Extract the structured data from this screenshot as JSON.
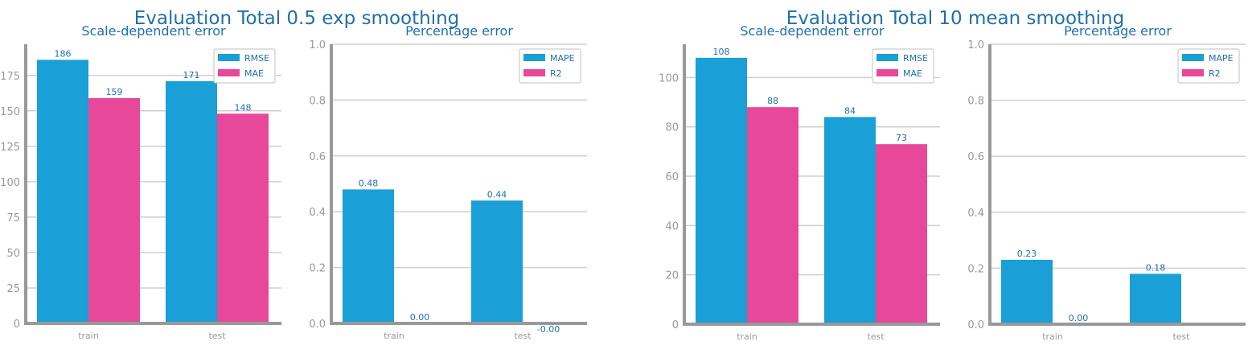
{
  "figure": {
    "titles": [
      "Evaluation Total 0.5 exp smoothing",
      "Evaluation Total 10 mean smoothing"
    ]
  },
  "colors": {
    "series_a": "#1a9fd6",
    "series_b": "#e8489a",
    "text": "#1f6fad",
    "axis": "#999999",
    "grid": "#cfcfcf"
  },
  "chart_data": [
    {
      "type": "bar",
      "title": "Scale-dependent error",
      "categories": [
        "train",
        "test"
      ],
      "series": [
        {
          "name": "RMSE",
          "values": [
            186,
            171
          ],
          "labels": [
            "186",
            "171"
          ]
        },
        {
          "name": "MAE",
          "values": [
            159,
            148
          ],
          "labels": [
            "159",
            "148"
          ]
        }
      ],
      "ylim": [
        0,
        197
      ],
      "yticks": [
        0,
        25,
        50,
        75,
        100,
        125,
        150,
        175
      ],
      "legend": "top-right",
      "grid": true,
      "xlabel": "",
      "ylabel": ""
    },
    {
      "type": "bar",
      "title": "Percentage error",
      "categories": [
        "train",
        "test"
      ],
      "series": [
        {
          "name": "MAPE",
          "values": [
            0.48,
            0.44
          ],
          "labels": [
            "0.48",
            "0.44"
          ]
        },
        {
          "name": "R2",
          "values": [
            0.0,
            -0.0
          ],
          "labels": [
            "0.00",
            "-0.00"
          ]
        }
      ],
      "ylim": [
        0,
        1.0
      ],
      "yticks": [
        0.0,
        0.2,
        0.4,
        0.6,
        0.8,
        1.0
      ],
      "yticklabels": [
        "0.0",
        "0.2",
        "0.4",
        "0.6",
        "0.8",
        "1.0"
      ],
      "legend": "top-right",
      "grid": true,
      "xlabel": "",
      "ylabel": ""
    },
    {
      "type": "bar",
      "title": "Scale-dependent error",
      "categories": [
        "train",
        "test"
      ],
      "series": [
        {
          "name": "RMSE",
          "values": [
            108,
            84
          ],
          "labels": [
            "108",
            "84"
          ]
        },
        {
          "name": "MAE",
          "values": [
            88,
            73
          ],
          "labels": [
            "88",
            "73"
          ]
        }
      ],
      "ylim": [
        0,
        113.5
      ],
      "yticks": [
        0,
        20,
        40,
        60,
        80,
        100
      ],
      "legend": "top-right",
      "grid": true,
      "xlabel": "",
      "ylabel": ""
    },
    {
      "type": "bar",
      "title": "Percentage error",
      "categories": [
        "train",
        "test"
      ],
      "series": [
        {
          "name": "MAPE",
          "values": [
            0.23,
            0.18
          ],
          "labels": [
            "0.23",
            "0.18"
          ]
        },
        {
          "name": "R2",
          "values": [
            0.0,
            0.0
          ],
          "labels": [
            "0.00",
            ""
          ]
        }
      ],
      "ylim": [
        0,
        1.0
      ],
      "yticks": [
        0.0,
        0.2,
        0.4,
        0.6,
        0.8,
        1.0
      ],
      "yticklabels": [
        "0.0",
        "0.2",
        "0.4",
        "0.6",
        "0.8",
        "1.0"
      ],
      "legend": "top-right",
      "grid": true,
      "xlabel": "",
      "ylabel": ""
    }
  ]
}
